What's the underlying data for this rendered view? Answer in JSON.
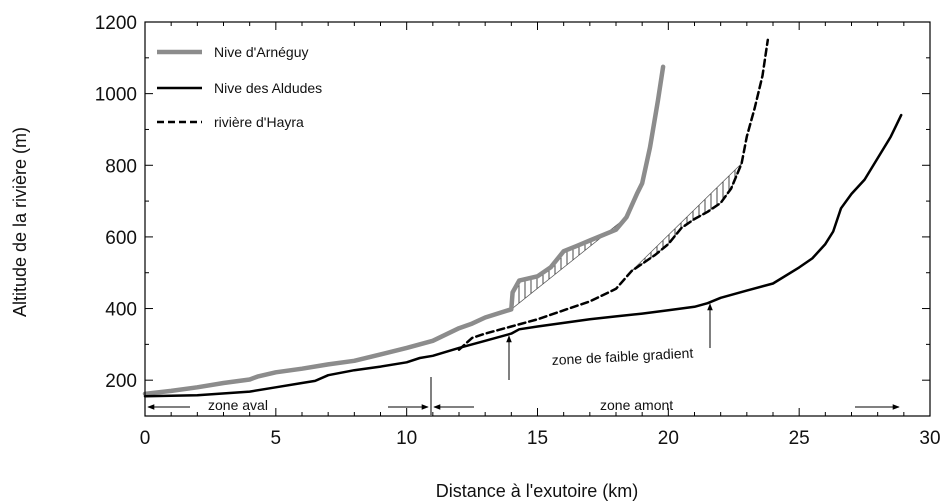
{
  "chart_data": {
    "type": "line",
    "xlabel": "Distance à l'exutoire (km)",
    "ylabel": "Altitude de la rivière (m)",
    "xlim": [
      0,
      30
    ],
    "ylim": [
      100,
      1200
    ],
    "x_ticks": [
      0,
      5,
      10,
      15,
      20,
      25,
      30
    ],
    "y_ticks": [
      200,
      400,
      600,
      800,
      1000,
      1200
    ],
    "legend_position": "top-left",
    "series": [
      {
        "name": "Nive d'Arnéguy",
        "color": "#8c8c8c",
        "style": "solid-thick",
        "points": [
          [
            0,
            162
          ],
          [
            1,
            170
          ],
          [
            2,
            180
          ],
          [
            3,
            192
          ],
          [
            4,
            202
          ],
          [
            4.3,
            210
          ],
          [
            5,
            222
          ],
          [
            6,
            232
          ],
          [
            7,
            244
          ],
          [
            8,
            254
          ],
          [
            9,
            272
          ],
          [
            10,
            290
          ],
          [
            11,
            310
          ],
          [
            12,
            345
          ],
          [
            12.5,
            358
          ],
          [
            13,
            375
          ],
          [
            14,
            398
          ],
          [
            14.05,
            445
          ],
          [
            14.3,
            478
          ],
          [
            15,
            490
          ],
          [
            15.5,
            515
          ],
          [
            16,
            560
          ],
          [
            16.5,
            575
          ],
          [
            17,
            590
          ],
          [
            18,
            620
          ],
          [
            18.4,
            655
          ],
          [
            18.8,
            720
          ],
          [
            19,
            750
          ],
          [
            19.3,
            850
          ],
          [
            19.6,
            980
          ],
          [
            19.8,
            1075
          ]
        ]
      },
      {
        "name": "Nive des Aldudes",
        "color": "#000000",
        "style": "solid",
        "points": [
          [
            0,
            155
          ],
          [
            2,
            158
          ],
          [
            4,
            168
          ],
          [
            5,
            180
          ],
          [
            6,
            192
          ],
          [
            6.5,
            198
          ],
          [
            7,
            214
          ],
          [
            8,
            228
          ],
          [
            9,
            238
          ],
          [
            10,
            250
          ],
          [
            10.5,
            262
          ],
          [
            11,
            268
          ],
          [
            12,
            290
          ],
          [
            13,
            310
          ],
          [
            14,
            330
          ],
          [
            14.3,
            342
          ],
          [
            15,
            350
          ],
          [
            16,
            360
          ],
          [
            17,
            370
          ],
          [
            18,
            378
          ],
          [
            19,
            386
          ],
          [
            20,
            395
          ],
          [
            21,
            405
          ],
          [
            21.5,
            415
          ],
          [
            22,
            430
          ],
          [
            23,
            450
          ],
          [
            24,
            470
          ],
          [
            25,
            515
          ],
          [
            25.5,
            540
          ],
          [
            26,
            580
          ],
          [
            26.3,
            615
          ],
          [
            26.6,
            680
          ],
          [
            27,
            720
          ],
          [
            27.5,
            760
          ],
          [
            28,
            820
          ],
          [
            28.5,
            880
          ],
          [
            28.9,
            940
          ]
        ]
      },
      {
        "name": "rivière d'Hayra",
        "color": "#000000",
        "style": "dashed",
        "points": [
          [
            12,
            285
          ],
          [
            12.5,
            318
          ],
          [
            13,
            330
          ],
          [
            14,
            350
          ],
          [
            15,
            370
          ],
          [
            16,
            395
          ],
          [
            17,
            420
          ],
          [
            18,
            455
          ],
          [
            18.6,
            505
          ],
          [
            19,
            525
          ],
          [
            19.5,
            550
          ],
          [
            20,
            580
          ],
          [
            20.5,
            625
          ],
          [
            21,
            650
          ],
          [
            21.5,
            670
          ],
          [
            22,
            695
          ],
          [
            22.4,
            735
          ],
          [
            22.8,
            805
          ],
          [
            23,
            880
          ],
          [
            23.3,
            960
          ],
          [
            23.6,
            1050
          ],
          [
            23.8,
            1150
          ]
        ]
      }
    ],
    "annotations": {
      "zone_aval": "zone aval",
      "zone_amont": "zone amont",
      "zone_faible": "zone de faible gradient"
    }
  }
}
